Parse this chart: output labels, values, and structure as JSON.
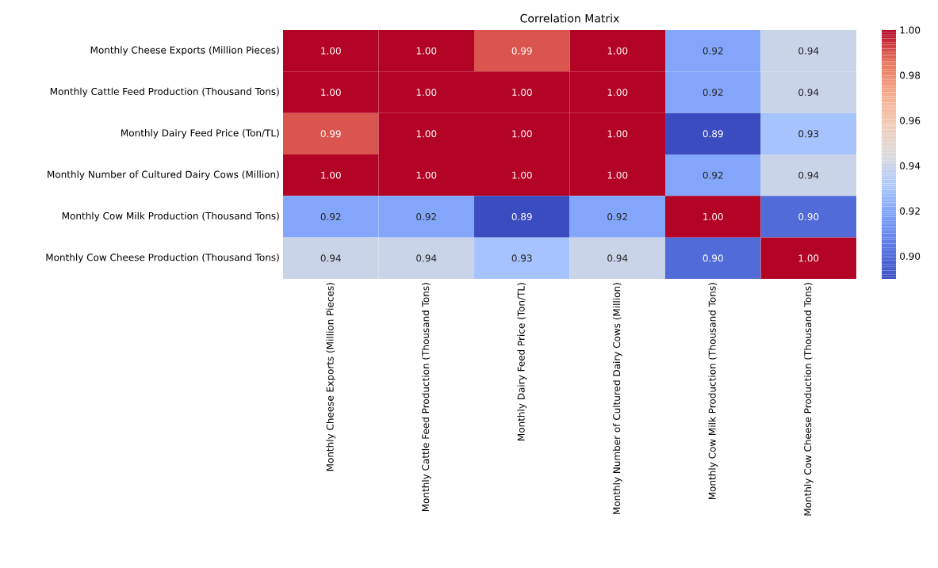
{
  "chart_data": {
    "type": "heatmap",
    "title": "Correlation Matrix",
    "categories": [
      "Monthly Cheese Exports (Million Pieces)",
      "Monthly Cattle Feed Production (Thousand Tons)",
      "Monthly Dairy Feed Price (Ton/TL)",
      "Monthly Number of Cultured Dairy Cows (Million)",
      "Monthly Cow Milk Production (Thousand Tons)",
      "Monthly Cow Cheese Production (Thousand Tons)"
    ],
    "y_categories": [
      "Monthly Cheese Exports (Million Pieces)",
      "Monthly Cattle Feed Production (Thousand Tons)",
      "Monthly Dairy Feed Price (Ton/TL)",
      "Monthly Number of Cultured Dairy Cows (Million)",
      "Monthly Cow Milk Production (Thousand Tons)",
      "Monthly Cow Cheese Production (Thousand Tons)"
    ],
    "cells": [
      [
        1.0,
        1.0,
        0.99,
        1.0,
        0.92,
        0.94
      ],
      [
        1.0,
        1.0,
        1.0,
        1.0,
        0.92,
        0.94
      ],
      [
        0.99,
        1.0,
        1.0,
        1.0,
        0.89,
        0.93
      ],
      [
        1.0,
        1.0,
        1.0,
        1.0,
        0.92,
        0.94
      ],
      [
        0.92,
        0.92,
        0.89,
        0.92,
        1.0,
        0.9
      ],
      [
        0.94,
        0.94,
        0.93,
        0.94,
        0.9,
        1.0
      ]
    ],
    "cell_labels": [
      [
        "1.00",
        "1.00",
        "0.99",
        "1.00",
        "0.92",
        "0.94"
      ],
      [
        "1.00",
        "1.00",
        "1.00",
        "1.00",
        "0.92",
        "0.94"
      ],
      [
        "0.99",
        "1.00",
        "1.00",
        "1.00",
        "0.89",
        "0.93"
      ],
      [
        "1.00",
        "1.00",
        "1.00",
        "1.00",
        "0.92",
        "0.94"
      ],
      [
        "0.92",
        "0.92",
        "0.89",
        "0.92",
        "1.00",
        "0.90"
      ],
      [
        "0.94",
        "0.94",
        "0.93",
        "0.94",
        "0.90",
        "1.00"
      ]
    ],
    "clim": [
      0.89,
      1.0
    ],
    "cticks": [
      {
        "value": 0.9,
        "label": "0.90"
      },
      {
        "value": 0.92,
        "label": "0.92"
      },
      {
        "value": 0.94,
        "label": "0.94"
      },
      {
        "value": 0.96,
        "label": "0.96"
      },
      {
        "value": 0.98,
        "label": "0.98"
      },
      {
        "value": 1.0,
        "label": "1.00"
      }
    ]
  }
}
